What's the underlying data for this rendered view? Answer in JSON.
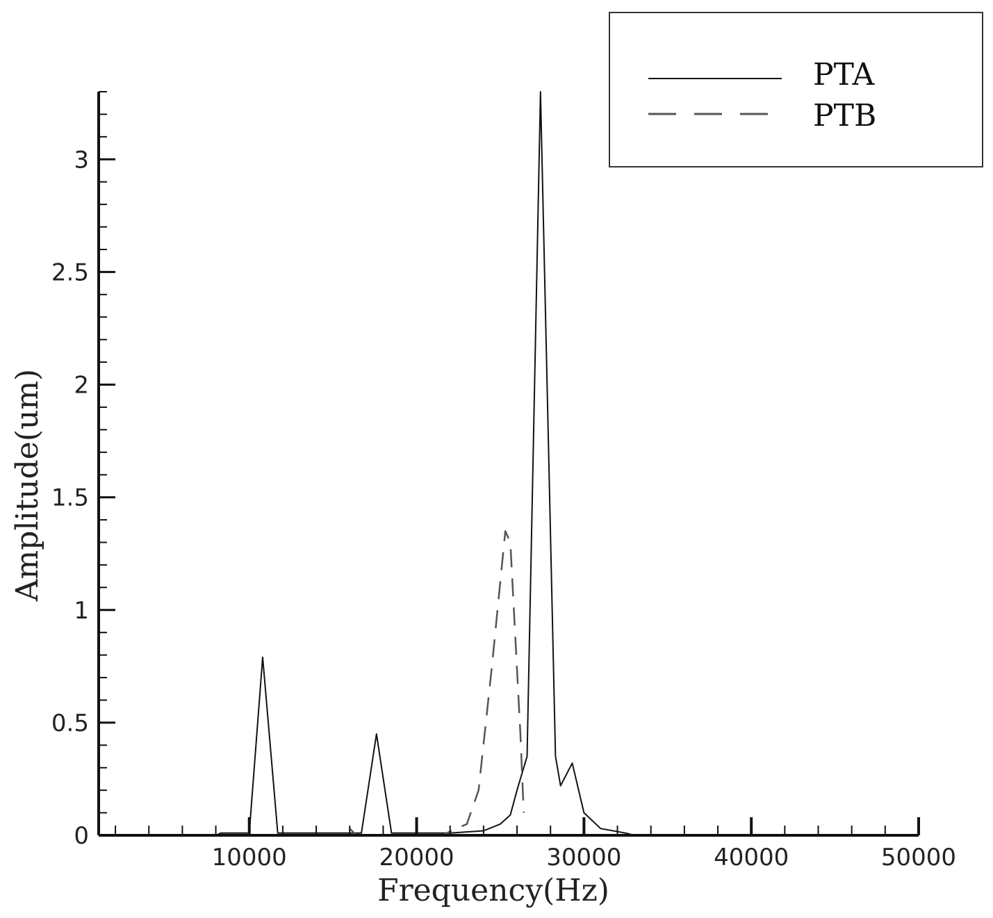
{
  "chart_data": {
    "type": "line",
    "title": "",
    "xlabel": "Frequency(Hz)",
    "ylabel": "Amplitude(um)",
    "xlim": [
      1000,
      50000
    ],
    "ylim": [
      0,
      3.3
    ],
    "x_ticks": [
      10000,
      20000,
      30000,
      40000,
      50000
    ],
    "y_ticks": [
      0,
      0.5,
      1,
      1.5,
      2,
      2.5,
      3
    ],
    "x_tick_labels": [
      "10000",
      "20000",
      "30000",
      "40000",
      "50000"
    ],
    "y_tick_labels": [
      "0",
      "0.5",
      "1",
      "1.5",
      "2",
      "2.5",
      "3"
    ],
    "grid": false,
    "legend_position": "top-right",
    "series": [
      {
        "name": "PTA",
        "style": "solid",
        "color": "#111111",
        "points": [
          [
            8000,
            0
          ],
          [
            8300,
            0.01
          ],
          [
            10000,
            0.01
          ],
          [
            10800,
            0.79
          ],
          [
            11700,
            0.01
          ],
          [
            16700,
            0.01
          ],
          [
            17600,
            0.45
          ],
          [
            18500,
            0.01
          ],
          [
            22000,
            0.01
          ],
          [
            24000,
            0.02
          ],
          [
            25000,
            0.05
          ],
          [
            25600,
            0.09
          ],
          [
            26000,
            0.2
          ],
          [
            26600,
            0.35
          ],
          [
            27400,
            3.3
          ],
          [
            28300,
            0.35
          ],
          [
            28600,
            0.22
          ],
          [
            29300,
            0.32
          ],
          [
            30000,
            0.1
          ],
          [
            31000,
            0.03
          ],
          [
            32500,
            0.01
          ],
          [
            33000,
            0
          ]
        ]
      },
      {
        "name": "PTB",
        "style": "dashed",
        "color": "#555555",
        "points": [
          [
            16000,
            0.03
          ],
          [
            16400,
            0.0
          ],
          [
            21500,
            0.0
          ],
          [
            23000,
            0.05
          ],
          [
            23700,
            0.2
          ],
          [
            24500,
            0.75
          ],
          [
            25300,
            1.35
          ],
          [
            25600,
            1.3
          ],
          [
            26200,
            0.45
          ],
          [
            26400,
            0.1
          ]
        ]
      }
    ]
  }
}
